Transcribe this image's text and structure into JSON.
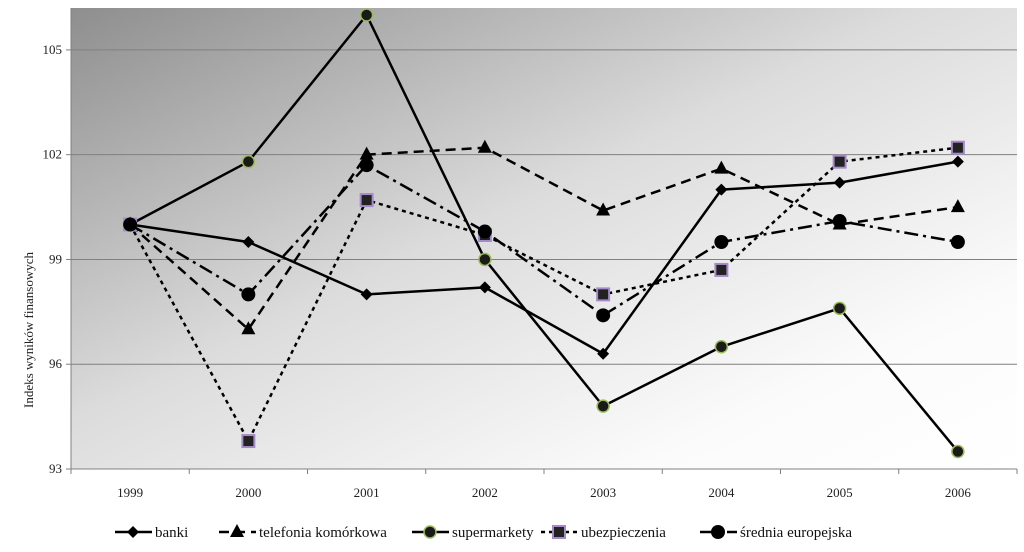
{
  "chart_data": {
    "type": "line",
    "ylabel": "Indeks wyników finansowych",
    "xlabel": "",
    "ylim": [
      93,
      106.2
    ],
    "yticks": [
      93,
      96,
      99,
      102,
      105
    ],
    "grid": true,
    "legend_position": "bottom",
    "categories": [
      "1999",
      "2000",
      "2001",
      "2002",
      "2003",
      "2004",
      "2005",
      "2006"
    ],
    "series": [
      {
        "name": "banki",
        "marker": "diamond",
        "dash": "solid",
        "values": [
          100,
          99.5,
          98.0,
          98.2,
          96.3,
          101.0,
          101.2,
          101.8
        ]
      },
      {
        "name": "telefonia komórkowa",
        "marker": "triangle",
        "dash": "dashed",
        "values": [
          100,
          97.0,
          102.0,
          102.2,
          100.4,
          101.6,
          100.0,
          100.5
        ]
      },
      {
        "name": "supermarkety",
        "marker": "circle-olive",
        "dash": "solid",
        "values": [
          100,
          101.8,
          106.0,
          99.0,
          94.8,
          96.5,
          97.6,
          93.5
        ]
      },
      {
        "name": "ubezpieczenia",
        "marker": "square",
        "dash": "dotted",
        "values": [
          100,
          93.8,
          100.7,
          99.7,
          98.0,
          98.7,
          101.8,
          102.2
        ]
      },
      {
        "name": "średnia europejska",
        "marker": "circle",
        "dash": "dashdot",
        "values": [
          100,
          98.0,
          101.7,
          99.8,
          97.4,
          99.5,
          100.1,
          99.5
        ]
      }
    ]
  }
}
